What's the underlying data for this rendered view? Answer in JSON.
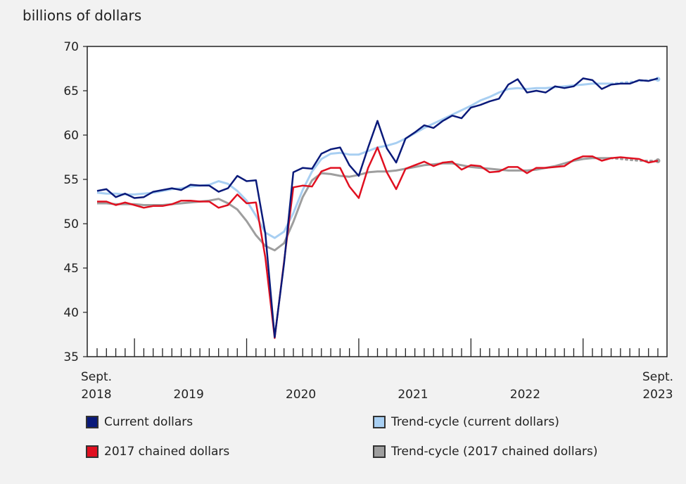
{
  "chart_data": {
    "type": "line",
    "ylabel": "billions of dollars",
    "ylim": [
      35,
      70
    ],
    "yticks": [
      35,
      40,
      45,
      50,
      55,
      60,
      65,
      70
    ],
    "xstart_label": "Sept.\n2018",
    "xend_label": "Sept.\n2023",
    "year_labels": [
      "2019",
      "2020",
      "2021",
      "2022"
    ],
    "x_months": [
      "2018-09",
      "2018-10",
      "2018-11",
      "2018-12",
      "2019-01",
      "2019-02",
      "2019-03",
      "2019-04",
      "2019-05",
      "2019-06",
      "2019-07",
      "2019-08",
      "2019-09",
      "2019-10",
      "2019-11",
      "2019-12",
      "2020-01",
      "2020-02",
      "2020-03",
      "2020-04",
      "2020-05",
      "2020-06",
      "2020-07",
      "2020-08",
      "2020-09",
      "2020-10",
      "2020-11",
      "2020-12",
      "2021-01",
      "2021-02",
      "2021-03",
      "2021-04",
      "2021-05",
      "2021-06",
      "2021-07",
      "2021-08",
      "2021-09",
      "2021-10",
      "2021-11",
      "2021-12",
      "2022-01",
      "2022-02",
      "2022-03",
      "2022-04",
      "2022-05",
      "2022-06",
      "2022-07",
      "2022-08",
      "2022-09",
      "2022-10",
      "2022-11",
      "2022-12",
      "2023-01",
      "2023-02",
      "2023-03",
      "2023-04",
      "2023-05",
      "2023-06",
      "2023-07",
      "2023-08",
      "2023-09"
    ],
    "series": [
      {
        "name": "Current dollars",
        "color": "#0a1a7a",
        "values": [
          53.7,
          53.9,
          53.0,
          53.4,
          52.9,
          53.0,
          53.6,
          53.8,
          54.0,
          53.8,
          54.4,
          54.3,
          54.3,
          53.6,
          54.0,
          55.4,
          54.8,
          54.9,
          48.9,
          37.2,
          45.5,
          55.8,
          56.3,
          56.2,
          57.9,
          58.4,
          58.6,
          56.6,
          55.4,
          58.6,
          61.6,
          58.5,
          56.9,
          59.6,
          60.3,
          61.1,
          60.8,
          61.6,
          62.2,
          61.9,
          63.1,
          63.4,
          63.8,
          64.1,
          65.7,
          66.3,
          64.8,
          65.0,
          64.8,
          65.5,
          65.3,
          65.5,
          66.4,
          66.2,
          65.2,
          65.7,
          65.8,
          65.8,
          66.2,
          66.1,
          66.4
        ]
      },
      {
        "name": "Trend-cycle (current dollars)",
        "color": "#a8cff2",
        "values": [
          53.5,
          53.4,
          53.4,
          53.3,
          53.3,
          53.4,
          53.5,
          53.7,
          53.9,
          54.0,
          54.2,
          54.3,
          54.4,
          54.8,
          54.5,
          53.7,
          52.6,
          50.9,
          49.0,
          48.4,
          49.1,
          51.2,
          53.8,
          55.9,
          57.3,
          57.9,
          58.0,
          57.8,
          57.8,
          58.2,
          58.6,
          58.8,
          59.1,
          59.6,
          60.2,
          60.8,
          61.3,
          61.8,
          62.3,
          62.8,
          63.3,
          63.9,
          64.3,
          64.8,
          65.2,
          65.3,
          65.2,
          65.3,
          65.3,
          65.4,
          65.5,
          65.6,
          65.7,
          65.8,
          65.8,
          65.8,
          65.9,
          66.0,
          66.1,
          66.2,
          66.3
        ]
      },
      {
        "name": "2017 chained dollars",
        "color": "#e01020",
        "values": [
          52.5,
          52.5,
          52.1,
          52.4,
          52.1,
          51.8,
          52.0,
          52.0,
          52.2,
          52.6,
          52.6,
          52.5,
          52.5,
          51.8,
          52.1,
          53.3,
          52.3,
          52.4,
          46.2,
          37.1,
          45.7,
          54.1,
          54.3,
          54.2,
          55.9,
          56.3,
          56.3,
          54.2,
          52.9,
          56.3,
          58.6,
          55.8,
          53.9,
          56.2,
          56.6,
          57.0,
          56.5,
          56.9,
          57.0,
          56.1,
          56.6,
          56.5,
          55.8,
          55.9,
          56.4,
          56.4,
          55.7,
          56.3,
          56.3,
          56.4,
          56.5,
          57.2,
          57.6,
          57.6,
          57.1,
          57.4,
          57.5,
          57.4,
          57.3,
          56.9,
          57.1
        ]
      },
      {
        "name": "Trend-cycle (2017 chained dollars)",
        "color": "#9e9e9e",
        "values": [
          52.3,
          52.3,
          52.2,
          52.2,
          52.2,
          52.1,
          52.1,
          52.1,
          52.2,
          52.3,
          52.4,
          52.5,
          52.6,
          52.8,
          52.3,
          51.6,
          50.3,
          48.7,
          47.5,
          47.0,
          47.8,
          50.2,
          53.0,
          54.9,
          55.7,
          55.6,
          55.4,
          55.3,
          55.5,
          55.8,
          55.9,
          55.9,
          56.0,
          56.2,
          56.4,
          56.6,
          56.7,
          56.8,
          56.8,
          56.6,
          56.4,
          56.3,
          56.2,
          56.1,
          56.0,
          56.0,
          56.0,
          56.1,
          56.3,
          56.5,
          56.8,
          57.1,
          57.3,
          57.4,
          57.4,
          57.4,
          57.3,
          57.2,
          57.1,
          57.1,
          57.1
        ]
      }
    ],
    "trend_projected_last_n": 5,
    "grid": false,
    "legend_position": "bottom"
  }
}
